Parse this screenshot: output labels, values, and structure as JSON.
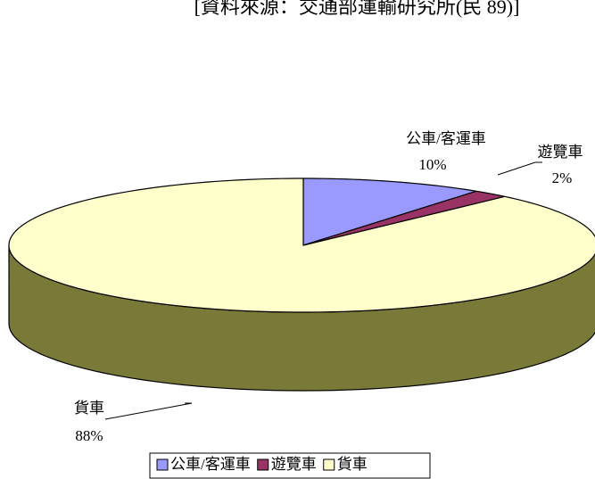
{
  "chart_data": {
    "type": "pie",
    "title": "[資料來源：交通部運輸研究所(民 89)]",
    "categories": [
      "公車/客運車",
      "遊覽車",
      "貨車"
    ],
    "values": [
      10,
      2,
      88
    ],
    "value_labels": [
      "10%",
      "2%",
      "88%"
    ],
    "colors": [
      "#9999ff",
      "#993366",
      "#ffffcc"
    ],
    "legend": "bottom"
  }
}
